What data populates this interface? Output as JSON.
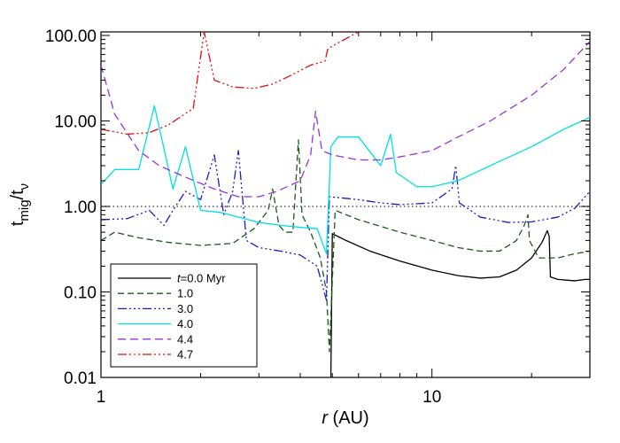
{
  "chart_data": {
    "type": "line",
    "xlabel": {
      "symbol": "r",
      "unit": " (AU)"
    },
    "ylabel": {
      "base": "t",
      "sub1": "mig",
      "slash": "/t",
      "sub2": "ν"
    },
    "xscale": "log",
    "yscale": "log",
    "xlim": [
      1,
      30
    ],
    "ylim": [
      0.01,
      110
    ],
    "x_ticks": [
      {
        "value": 1,
        "label": "1"
      },
      {
        "value": 10,
        "label": "10"
      }
    ],
    "y_ticks": [
      {
        "value": 0.01,
        "label": "0.01"
      },
      {
        "value": 0.1,
        "label": "0.10"
      },
      {
        "value": 1,
        "label": "1.00"
      },
      {
        "value": 10,
        "label": "10.00"
      },
      {
        "value": 100,
        "label": "100.00"
      }
    ],
    "grid": false,
    "legend_position": "bottom-left",
    "reference_line": {
      "y": 1.0,
      "style": "dotted",
      "color": "#555555"
    },
    "series": [
      {
        "label": "t=0.0 Myr",
        "label_italic": "t",
        "label_rest": "=0.0 Myr",
        "color": "#000000",
        "dash": "",
        "points": [
          [
            4.95,
            0.01
          ],
          [
            4.98,
            0.1
          ],
          [
            5.0,
            0.48
          ],
          [
            5.5,
            0.4
          ],
          [
            6.5,
            0.3
          ],
          [
            8,
            0.23
          ],
          [
            10,
            0.18
          ],
          [
            12,
            0.155
          ],
          [
            14,
            0.145
          ],
          [
            16,
            0.15
          ],
          [
            18,
            0.18
          ],
          [
            20,
            0.25
          ],
          [
            21.5,
            0.38
          ],
          [
            22.3,
            0.52
          ],
          [
            22.6,
            0.45
          ],
          [
            22.8,
            0.15
          ],
          [
            24,
            0.14
          ],
          [
            27,
            0.135
          ],
          [
            29,
            0.14
          ],
          [
            30,
            0.14
          ]
        ]
      },
      {
        "label": "1.0",
        "color": "#1a5c1a",
        "dash": "7,4",
        "points": [
          [
            1,
            0.4
          ],
          [
            1.1,
            0.5
          ],
          [
            1.3,
            0.43
          ],
          [
            1.6,
            0.38
          ],
          [
            2.0,
            0.35
          ],
          [
            2.5,
            0.37
          ],
          [
            2.9,
            0.55
          ],
          [
            3.2,
            0.9
          ],
          [
            3.3,
            1.6
          ],
          [
            3.45,
            0.6
          ],
          [
            3.6,
            0.5
          ],
          [
            3.8,
            0.5
          ],
          [
            3.95,
            6.0
          ],
          [
            4.05,
            0.8
          ],
          [
            4.3,
            0.5
          ],
          [
            4.6,
            0.25
          ],
          [
            4.8,
            0.1
          ],
          [
            4.9,
            0.02
          ],
          [
            5.1,
            0.9
          ],
          [
            6,
            0.7
          ],
          [
            8,
            0.5
          ],
          [
            10,
            0.4
          ],
          [
            12,
            0.33
          ],
          [
            14,
            0.3
          ],
          [
            16,
            0.3
          ],
          [
            18,
            0.4
          ],
          [
            19,
            0.6
          ],
          [
            19.5,
            0.8
          ],
          [
            19.7,
            0.4
          ],
          [
            21,
            0.25
          ],
          [
            24,
            0.25
          ],
          [
            27,
            0.28
          ],
          [
            30,
            0.3
          ]
        ]
      },
      {
        "label": "3.0",
        "color": "#1a1acc",
        "dash": "10,3,2,3,2,3,2,3",
        "points": [
          [
            1,
            0.7
          ],
          [
            1.2,
            0.72
          ],
          [
            1.4,
            0.9
          ],
          [
            1.55,
            0.6
          ],
          [
            1.65,
            0.9
          ],
          [
            1.8,
            1.5
          ],
          [
            2.0,
            1.2
          ],
          [
            2.2,
            4.0
          ],
          [
            2.35,
            0.8
          ],
          [
            2.5,
            1.5
          ],
          [
            2.6,
            4.5
          ],
          [
            2.75,
            0.4
          ],
          [
            3.0,
            0.33
          ],
          [
            3.5,
            0.3
          ],
          [
            4,
            0.27
          ],
          [
            4.5,
            0.2
          ],
          [
            4.8,
            0.08
          ],
          [
            4.9,
            1.3
          ],
          [
            6,
            1.2
          ],
          [
            7,
            1.1
          ],
          [
            8,
            1.05
          ],
          [
            10,
            1.1
          ],
          [
            11.5,
            1.6
          ],
          [
            11.8,
            3.0
          ],
          [
            12.1,
            1.1
          ],
          [
            14,
            0.75
          ],
          [
            17,
            0.65
          ],
          [
            20,
            0.66
          ],
          [
            24,
            0.75
          ],
          [
            27,
            0.95
          ],
          [
            30,
            1.5
          ]
        ]
      },
      {
        "label": "4.0",
        "color": "#00e0e0",
        "dash": "",
        "points": [
          [
            1,
            1.8
          ],
          [
            1.1,
            2.7
          ],
          [
            1.3,
            2.7
          ],
          [
            1.45,
            15.0
          ],
          [
            1.65,
            1.6
          ],
          [
            1.8,
            5.0
          ],
          [
            2.0,
            0.9
          ],
          [
            2.3,
            0.85
          ],
          [
            2.6,
            0.75
          ],
          [
            3,
            0.65
          ],
          [
            3.5,
            0.6
          ],
          [
            4,
            0.57
          ],
          [
            4.5,
            0.55
          ],
          [
            4.8,
            0.28
          ],
          [
            4.95,
            5.0
          ],
          [
            5.2,
            6.5
          ],
          [
            6,
            6.5
          ],
          [
            7,
            3.0
          ],
          [
            7.5,
            7.0
          ],
          [
            7.8,
            2.5
          ],
          [
            9,
            1.7
          ],
          [
            10,
            1.7
          ],
          [
            12,
            2.0
          ],
          [
            15,
            3.0
          ],
          [
            20,
            5.0
          ],
          [
            25,
            8.0
          ],
          [
            30,
            11.0
          ]
        ]
      },
      {
        "label": "4.4",
        "color": "#9933dd",
        "dash": "9,5",
        "points": [
          [
            1,
            45.0
          ],
          [
            1.1,
            12.0
          ],
          [
            1.3,
            4.5
          ],
          [
            1.5,
            3.0
          ],
          [
            1.8,
            2.2
          ],
          [
            2.2,
            1.6
          ],
          [
            2.6,
            1.3
          ],
          [
            3,
            1.3
          ],
          [
            3.4,
            1.5
          ],
          [
            4,
            2.0
          ],
          [
            4.3,
            4.0
          ],
          [
            4.45,
            13.0
          ],
          [
            4.65,
            4.5
          ],
          [
            5,
            4.0
          ],
          [
            6,
            3.5
          ],
          [
            7,
            3.5
          ],
          [
            8,
            3.8
          ],
          [
            10,
            4.5
          ],
          [
            12,
            6.5
          ],
          [
            15,
            10.0
          ],
          [
            20,
            20.0
          ],
          [
            25,
            40.0
          ],
          [
            30,
            85.0
          ]
        ]
      },
      {
        "label": "4.7",
        "color": "#dd1111",
        "dash": "10,3,2,3,2,3,2,3",
        "points": [
          [
            1,
            8.0
          ],
          [
            1.2,
            7.0
          ],
          [
            1.4,
            7.3
          ],
          [
            1.6,
            9.0
          ],
          [
            1.9,
            14.0
          ],
          [
            2.05,
            110.0
          ],
          [
            2.2,
            30.0
          ],
          [
            2.5,
            25.0
          ],
          [
            2.9,
            24.0
          ],
          [
            3.3,
            27.0
          ],
          [
            3.8,
            35.0
          ],
          [
            4.3,
            45.0
          ],
          [
            4.75,
            50.0
          ],
          [
            4.85,
            70.0
          ],
          [
            5.3,
            85.0
          ],
          [
            6.0,
            110.0
          ]
        ]
      }
    ]
  }
}
